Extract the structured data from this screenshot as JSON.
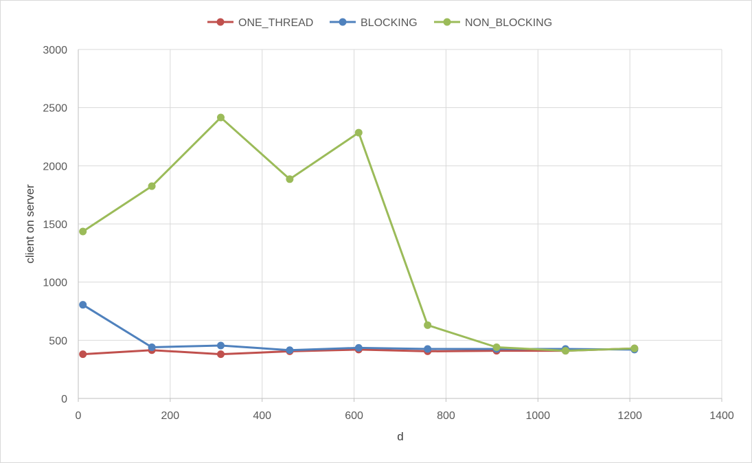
{
  "chart_data": {
    "type": "line",
    "title": "",
    "xlabel": "d",
    "ylabel": "client on server",
    "xlim": [
      0,
      1400
    ],
    "ylim": [
      0,
      3000
    ],
    "xticks": [
      "0",
      "200",
      "400",
      "600",
      "800",
      "1000",
      "1200",
      "1400"
    ],
    "yticks": [
      "0",
      "500",
      "1000",
      "1500",
      "2000",
      "2500",
      "3000"
    ],
    "grid": true,
    "legend": "top",
    "x": [
      10,
      160,
      310,
      460,
      610,
      760,
      910,
      1060,
      1210
    ],
    "series": [
      {
        "name": "ONE_THREAD",
        "color": "#c0504d",
        "values": [
          380,
          415,
          380,
          405,
          420,
          405,
          410,
          410,
          430
        ]
      },
      {
        "name": "BLOCKING",
        "color": "#4f81bd",
        "values": [
          805,
          440,
          455,
          415,
          435,
          425,
          425,
          425,
          420
        ]
      },
      {
        "name": "NON_BLOCKING",
        "color": "#9bbb59",
        "values": [
          1435,
          1825,
          2415,
          1885,
          2285,
          630,
          440,
          410,
          430
        ]
      }
    ]
  }
}
